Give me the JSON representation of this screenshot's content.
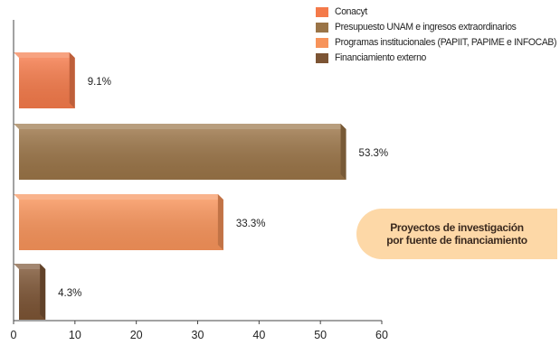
{
  "chart_data": {
    "type": "bar",
    "orientation": "horizontal",
    "categories": [
      "Conacyt",
      "Presupuesto UNAM e ingresos extraordinarios",
      "Programas institucionales (PAPIIT, PAPIME e INFOCAB)",
      "Financiamiento externo"
    ],
    "values": [
      9.1,
      53.3,
      33.3,
      4.3
    ],
    "data_labels": [
      "9.1%",
      "53.3%",
      "33.3%",
      "4.3%"
    ],
    "colors": [
      "#f47a4a",
      "#9a7447",
      "#f7935a",
      "#7c5434"
    ],
    "xlim": [
      0,
      60
    ],
    "xticks": [
      "0",
      "10",
      "20",
      "30",
      "40",
      "50",
      "60"
    ],
    "grid": false,
    "legend_position": "top-right"
  },
  "note": {
    "line1": "Proyectos de investigación",
    "line2": "por fuente de financiamiento"
  }
}
